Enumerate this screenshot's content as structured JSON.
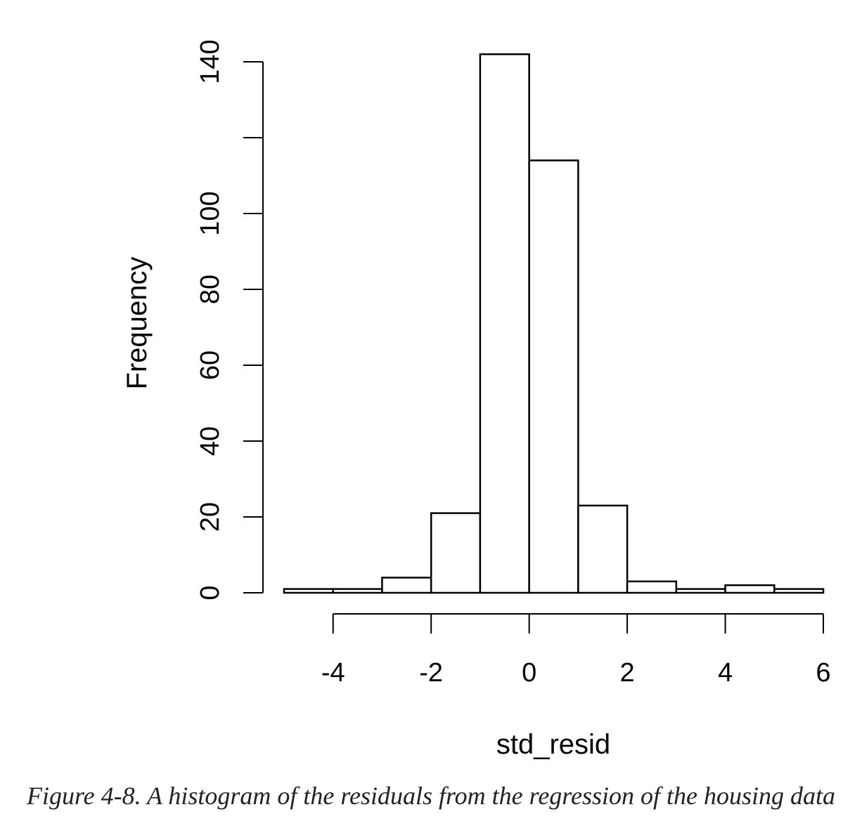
{
  "chart_data": {
    "type": "bar",
    "subtype": "histogram",
    "xlabel": "std_resid",
    "ylabel": "Frequency",
    "bins": [
      {
        "x0": -5,
        "x1": -4,
        "count": 1
      },
      {
        "x0": -4,
        "x1": -3,
        "count": 1
      },
      {
        "x0": -3,
        "x1": -2,
        "count": 4
      },
      {
        "x0": -2,
        "x1": -1,
        "count": 21
      },
      {
        "x0": -1,
        "x1": 0,
        "count": 142
      },
      {
        "x0": 0,
        "x1": 1,
        "count": 114
      },
      {
        "x0": 1,
        "x1": 2,
        "count": 23
      },
      {
        "x0": 2,
        "x1": 3,
        "count": 3
      },
      {
        "x0": 3,
        "x1": 4,
        "count": 1
      },
      {
        "x0": 4,
        "x1": 5,
        "count": 2
      },
      {
        "x0": 5,
        "x1": 6,
        "count": 1
      }
    ],
    "x_ticks": [
      -4,
      -2,
      0,
      2,
      4,
      6
    ],
    "x_tick_labels": [
      "-4",
      "-2",
      "0",
      "2",
      "4",
      "6"
    ],
    "y_ticks": [
      0,
      20,
      40,
      60,
      80,
      100,
      120,
      140
    ],
    "y_tick_labels": [
      "0",
      "20",
      "40",
      "60",
      "80",
      "100",
      "",
      "140"
    ],
    "xlim": [
      -5,
      6
    ],
    "ylim": [
      0,
      140
    ],
    "grid": false
  },
  "caption": "Figure 4-8. A histogram of the residuals from the regression of the housing data"
}
